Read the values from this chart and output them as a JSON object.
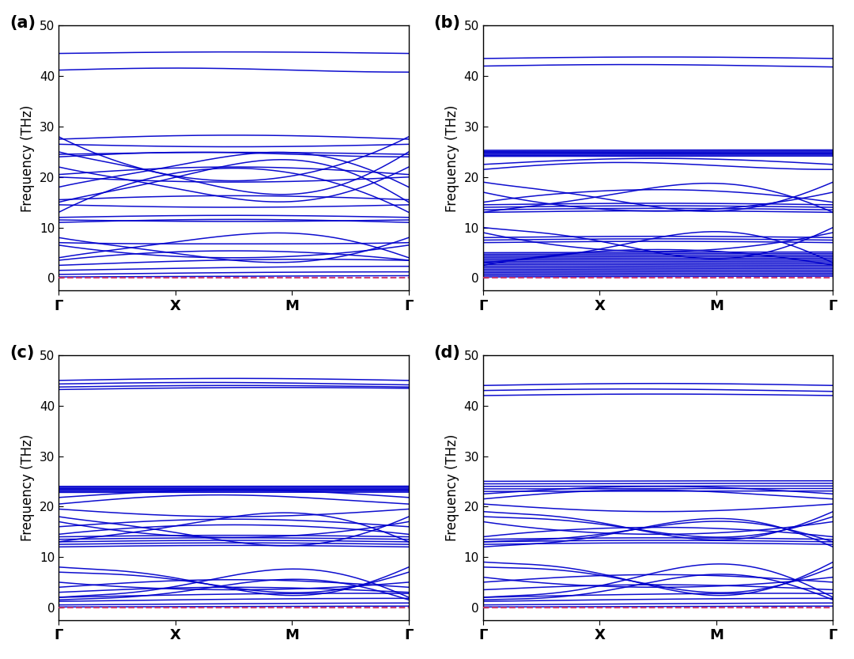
{
  "subplots": [
    "(a)",
    "(b)",
    "(c)",
    "(d)"
  ],
  "kpoint_labels": [
    "Γ",
    "X",
    "M",
    "Γ"
  ],
  "ylabel": "Frequency (THz)",
  "ylim": [
    -2.5,
    50
  ],
  "yticks": [
    0,
    10,
    20,
    30,
    40,
    50
  ],
  "line_color": "#0000cc",
  "dashed_color": "#cc3366",
  "background": "#ffffff",
  "figsize": [
    10.8,
    8.33
  ],
  "dpi": 100
}
